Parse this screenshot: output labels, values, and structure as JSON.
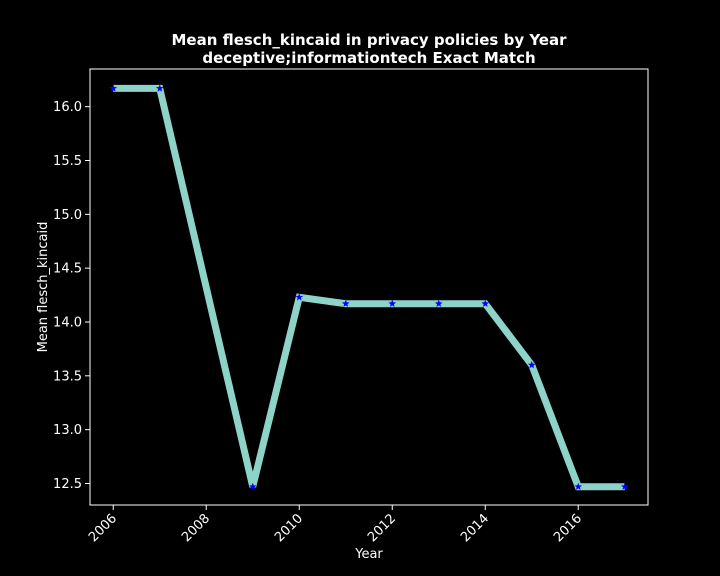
{
  "chart_data": {
    "type": "line",
    "title_line1": "Mean flesch_kincaid in privacy policies by Year",
    "title_line2": "deceptive;informationtech Exact Match",
    "xlabel": "Year",
    "ylabel": "Mean flesch_kincaid",
    "x": [
      2006,
      2007,
      2009,
      2010,
      2011,
      2012,
      2013,
      2014,
      2015,
      2016,
      2017
    ],
    "y": [
      16.17,
      16.17,
      12.47,
      14.23,
      14.17,
      14.17,
      14.17,
      14.17,
      13.6,
      12.47,
      12.47
    ],
    "xlim": [
      2005.5,
      2017.5
    ],
    "ylim": [
      12.3,
      16.35
    ],
    "xticks": [
      2006,
      2008,
      2010,
      2012,
      2014,
      2016
    ],
    "xtick_labels": [
      "2006",
      "2008",
      "2010",
      "2012",
      "2014",
      "2016"
    ],
    "yticks": [
      12.5,
      13.0,
      13.5,
      14.0,
      14.5,
      15.0,
      15.5,
      16.0
    ],
    "ytick_labels": [
      "12.5",
      "13.0",
      "13.5",
      "14.0",
      "14.5",
      "15.0",
      "15.5",
      "16.0"
    ],
    "line_color": "#8dd3c7",
    "marker_color": "#0000ff",
    "marker": "star",
    "background": "#000000",
    "grid": false,
    "legend": false
  }
}
